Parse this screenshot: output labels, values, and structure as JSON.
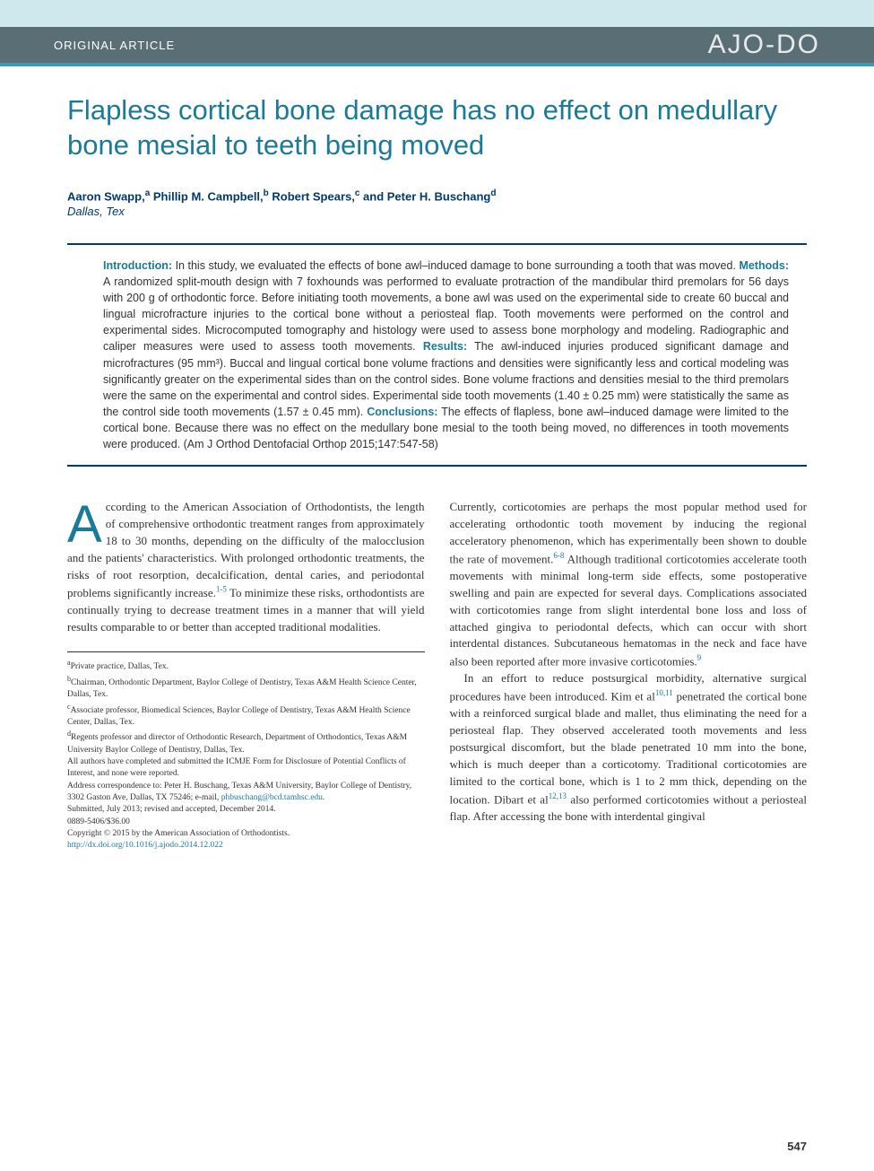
{
  "header": {
    "article_type": "ORIGINAL ARTICLE",
    "journal_logo": "AJO-DO"
  },
  "title": "Flapless cortical bone damage has no effect on medullary bone mesial to teeth being moved",
  "authors_html": "Aaron Swapp,<sup>a</sup> Phillip M. Campbell,<sup>b</sup> Robert Spears,<sup>c</sup> and Peter H. Buschang<sup>d</sup>",
  "location": "Dallas, Tex",
  "abstract": {
    "introduction_label": "Introduction:",
    "introduction": " In this study, we evaluated the effects of bone awl–induced damage to bone surrounding a tooth that was moved. ",
    "methods_label": "Methods:",
    "methods": " A randomized split-mouth design with 7 foxhounds was performed to evaluate protraction of the mandibular third premolars for 56 days with 200 g of orthodontic force. Before initiating tooth movements, a bone awl was used on the experimental side to create 60 buccal and lingual microfracture injuries to the cortical bone without a periosteal flap. Tooth movements were performed on the control and experimental sides. Microcomputed tomography and histology were used to assess bone morphology and modeling. Radiographic and caliper measures were used to assess tooth movements. ",
    "results_label": "Results:",
    "results": " The awl-induced injuries produced significant damage and microfractures (95 mm³). Buccal and lingual cortical bone volume fractions and densities were significantly less and cortical modeling was significantly greater on the experimental sides than on the control sides. Bone volume fractions and densities mesial to the third premolars were the same on the experimental and control sides. Experimental side tooth movements (1.40 ± 0.25 mm) were statistically the same as the control side tooth movements (1.57 ± 0.45 mm). ",
    "conclusions_label": "Conclusions:",
    "conclusions": " The effects of flapless, bone awl–induced damage were limited to the cortical bone. Because there was no effect on the medullary bone mesial to the tooth being moved, no differences in tooth movements were produced. (Am J Orthod Dentofacial Orthop 2015;147:547-58)"
  },
  "body": {
    "col1": {
      "dropcap": "A",
      "para1_html": "ccording to the American Association of Orthodontists, the length of comprehensive orthodontic treatment ranges from approximately 18 to 30 months, depending on the difficulty of the malocclusion and the patients' characteristics. With prolonged orthodontic treatments, the risks of root resorption, decalcification, dental caries, and periodontal problems significantly increase.<span class=\"ref-sup\">1-5</span> To minimize these risks, orthodontists are continually trying to decrease treatment times in a manner that will yield results comparable to or better than accepted traditional modalities."
    },
    "col2": {
      "para1_html": "Currently, corticotomies are perhaps the most popular method used for accelerating orthodontic tooth movement by inducing the regional acceleratory phenomenon, which has experimentally been shown to double the rate of movement.<span class=\"ref-sup\">6-8</span> Although traditional corticotomies accelerate tooth movements with minimal long-term side effects, some postoperative swelling and pain are expected for several days. Complications associated with corticotomies range from slight interdental bone loss and loss of attached gingiva to periodontal defects, which can occur with short interdental distances. Subcutaneous hematomas in the neck and face have also been reported after more invasive corticotomies.<span class=\"ref-sup\">9</span>",
      "para2_html": "In an effort to reduce postsurgical morbidity, alternative surgical procedures have been introduced. Kim et al<span class=\"ref-sup\">10,11</span> penetrated the cortical bone with a reinforced surgical blade and mallet, thus eliminating the need for a periosteal flap. They observed accelerated tooth movements and less postsurgical discomfort, but the blade penetrated 10 mm into the bone, which is much deeper than a corticotomy. Traditional corticotomies are limited to the cortical bone, which is 1 to 2 mm thick, depending on the location. Dibart et al<span class=\"ref-sup\">12,13</span> also performed corticotomies without a periosteal flap. After accessing the bone with interdental gingival"
    }
  },
  "affiliations": {
    "a": "Private practice, Dallas, Tex.",
    "b": "Chairman, Orthodontic Department, Baylor College of Dentistry, Texas A&M Health Science Center, Dallas, Tex.",
    "c": "Associate professor, Biomedical Sciences, Baylor College of Dentistry, Texas A&M Health Science Center, Dallas, Tex.",
    "d": "Regents professor and director of Orthodontic Research, Department of Orthodontics, Texas A&M University Baylor College of Dentistry, Dallas, Tex.",
    "disclosure": "All authors have completed and submitted the ICMJE Form for Disclosure of Potential Conflicts of Interest, and none were reported.",
    "correspondence": "Address correspondence to: Peter H. Buschang, Texas A&M University, Baylor College of Dentistry, 3302 Gaston Ave, Dallas, TX 75246; e-mail, ",
    "email": "phbuschang@bcd.tamhsc.edu",
    "submitted": "Submitted, July 2013; revised and accepted, December 2014.",
    "issn": "0889-5406/$36.00",
    "copyright": "Copyright © 2015 by the American Association of Orthodontists.",
    "doi": "http://dx.doi.org/10.1016/j.ajodo.2014.12.022"
  },
  "page_number": "547",
  "colors": {
    "top_bar": "#cfe8ee",
    "header_strip": "#5a6e75",
    "accent_blue": "#1a7a99",
    "dark_blue": "#003a6b",
    "border_blue": "#3a9bb5"
  },
  "typography": {
    "title_fontsize": 31,
    "body_fontsize": 13,
    "abstract_fontsize": 12.5,
    "affiliation_fontsize": 9.5,
    "dropcap_fontsize": 58
  }
}
